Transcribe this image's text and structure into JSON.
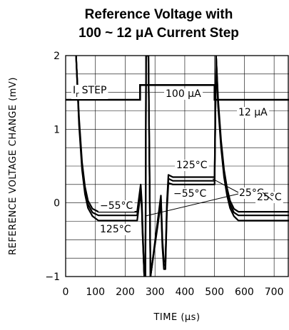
{
  "chart_data": {
    "type": "line",
    "title": "Reference Voltage with",
    "subtitle": "100 ~ 12 μA Current Step",
    "xlabel": "TIME (μs)",
    "ylabel": "REFERENCE VOLTAGE CHANGE (mV)",
    "xlim": [
      0,
      750
    ],
    "ylim": [
      -1,
      2
    ],
    "xticks": [
      "0",
      "100",
      "200",
      "300",
      "400",
      "500",
      "600",
      "700"
    ],
    "xtick_values": [
      0,
      100,
      200,
      300,
      400,
      500,
      600,
      700
    ],
    "yticks": [
      "−1",
      "0",
      "1",
      "2"
    ],
    "ytick_values": [
      -1,
      0,
      1,
      2
    ],
    "grid": true,
    "step_signal": {
      "name": "Ir STEP",
      "x": [
        0,
        250,
        250,
        500,
        500,
        750
      ],
      "y": [
        1.4,
        1.4,
        1.6,
        1.6,
        1.4,
        1.4
      ]
    },
    "series": [
      {
        "x": [
          35,
          45,
          55,
          65,
          75,
          90,
          110,
          150,
          200,
          240,
          252,
          256,
          258,
          264,
          268,
          270,
          278,
          285,
          320,
          325,
          330,
          335,
          340,
          345,
          360,
          400,
          480,
          500,
          505,
          512,
          522,
          532,
          542,
          552,
          565,
          580,
          600,
          650,
          700,
          750
        ],
        "y": [
          2.0,
          1.15,
          0.55,
          0.22,
          0.03,
          -0.08,
          -0.12,
          -0.12,
          -0.12,
          -0.12,
          0.25,
          0.0,
          -0.3,
          -1.0,
          -1.0,
          2.0,
          2.0,
          -1.0,
          0.1,
          -0.5,
          -0.8,
          -0.8,
          0.0,
          0.38,
          0.35,
          0.35,
          0.35,
          0.35,
          2.0,
          1.4,
          0.85,
          0.45,
          0.2,
          0.03,
          -0.08,
          -0.12,
          -0.12,
          -0.12,
          -0.12,
          -0.12
        ]
      },
      {
        "x": [
          35,
          45,
          55,
          65,
          75,
          90,
          110,
          150,
          200,
          240,
          252,
          256,
          258,
          264,
          268,
          270,
          278,
          285,
          320,
          325,
          330,
          335,
          340,
          345,
          360,
          400,
          480,
          500,
          505,
          512,
          522,
          532,
          542,
          552,
          565,
          580,
          600,
          650,
          700,
          750
        ],
        "y": [
          2.0,
          1.1,
          0.5,
          0.17,
          -0.02,
          -0.13,
          -0.17,
          -0.17,
          -0.17,
          -0.17,
          0.2,
          -0.05,
          -0.35,
          -1.0,
          -1.0,
          2.0,
          2.0,
          -1.0,
          0.05,
          -0.55,
          -0.85,
          -0.85,
          -0.05,
          0.33,
          0.3,
          0.3,
          0.3,
          0.3,
          2.0,
          1.35,
          0.8,
          0.4,
          0.15,
          -0.02,
          -0.13,
          -0.17,
          -0.17,
          -0.17,
          -0.17,
          -0.17
        ]
      },
      {
        "x": [
          35,
          45,
          55,
          65,
          75,
          90,
          110,
          150,
          200,
          240,
          252,
          256,
          258,
          264,
          268,
          270,
          278,
          285,
          320,
          325,
          330,
          335,
          340,
          345,
          360,
          400,
          480,
          500,
          505,
          512,
          522,
          532,
          542,
          552,
          565,
          580,
          600,
          650,
          700,
          750
        ],
        "y": [
          2.0,
          1.05,
          0.45,
          0.12,
          -0.07,
          -0.18,
          -0.24,
          -0.24,
          -0.24,
          -0.24,
          0.15,
          -0.1,
          -0.4,
          -1.0,
          -1.0,
          2.0,
          2.0,
          -1.0,
          0.0,
          -0.6,
          -0.9,
          -0.9,
          -0.1,
          0.27,
          0.25,
          0.25,
          0.25,
          0.25,
          2.0,
          1.3,
          0.75,
          0.35,
          0.1,
          -0.07,
          -0.18,
          -0.24,
          -0.24,
          -0.24,
          -0.24,
          -0.24
        ]
      }
    ],
    "annotations": {
      "step_label": "I",
      "step_sub": "r",
      "step_word": "STEP",
      "high_current": "100 μA",
      "low_current": "12 μA",
      "t_125_mid": "125°C",
      "t_neg55_mid": "−55°C",
      "t_neg55_left": "−55°C",
      "t_125_left": "125°C",
      "t_25": "25°C",
      "t_25_right": "25°C"
    }
  }
}
